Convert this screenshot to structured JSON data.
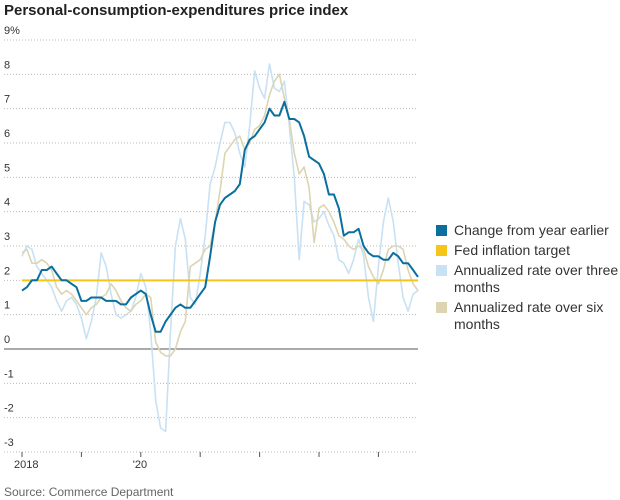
{
  "chart_data": {
    "type": "line",
    "title": "Personal-consumption-expenditures price index",
    "source": "Source: Commerce Department",
    "categories": [
      "2018",
      null,
      null,
      null,
      null,
      null,
      null,
      null,
      null,
      null,
      null,
      null,
      null,
      null,
      null,
      null,
      null,
      null,
      null,
      null,
      null,
      null,
      null,
      null,
      "'20",
      null,
      null,
      null,
      null,
      null,
      null,
      null,
      null,
      null,
      null,
      null,
      null,
      null,
      null,
      null,
      null,
      null,
      null,
      null,
      null,
      null,
      null,
      null,
      null,
      null,
      null,
      null,
      null,
      null,
      null,
      null,
      null,
      null,
      null,
      null,
      null,
      null,
      null,
      null,
      null,
      null,
      null,
      null,
      null,
      null,
      null,
      null,
      null,
      null,
      null,
      null,
      null,
      null,
      null,
      null,
      null
    ],
    "series": [
      {
        "name": "Annualized rate over three months",
        "color": "#c8e1f3",
        "values": [
          2.7,
          3.0,
          2.9,
          2.4,
          2.2,
          2.0,
          1.8,
          1.4,
          1.1,
          1.4,
          1.5,
          1.3,
          0.9,
          0.3,
          0.8,
          1.5,
          2.8,
          2.4,
          1.6,
          1.0,
          0.9,
          1.0,
          1.1,
          1.5,
          2.2,
          1.8,
          0.5,
          -1.5,
          -2.3,
          -2.4,
          0.5,
          3.0,
          3.8,
          3.2,
          1.5,
          1.3,
          2.2,
          3.3,
          4.8,
          5.3,
          6.0,
          6.6,
          6.6,
          6.3,
          5.7,
          5.3,
          6.5,
          8.1,
          7.6,
          7.3,
          8.3,
          7.6,
          7.5,
          7.8,
          6.5,
          5.0,
          2.6,
          4.3,
          4.2,
          3.7,
          3.8,
          4.0,
          3.6,
          3.3,
          2.6,
          2.5,
          2.2,
          2.6,
          3.2,
          2.7,
          1.5,
          0.8,
          2.4,
          3.7,
          4.4,
          3.7,
          2.5,
          1.5,
          1.1,
          1.6,
          1.7
        ]
      },
      {
        "name": "Annualized rate over six months",
        "color": "#ddd4b2",
        "values": [
          2.8,
          2.9,
          2.5,
          2.5,
          2.6,
          2.5,
          2.3,
          1.8,
          1.6,
          1.7,
          1.6,
          1.4,
          1.2,
          1.0,
          1.2,
          1.3,
          1.5,
          1.6,
          1.9,
          1.7,
          1.4,
          1.2,
          1.1,
          1.3,
          1.4,
          1.6,
          1.5,
          0.2,
          -0.1,
          -0.2,
          -0.2,
          0.0,
          0.5,
          0.8,
          2.4,
          2.5,
          2.6,
          2.9,
          3.0,
          3.7,
          4.6,
          5.7,
          5.9,
          6.1,
          6.2,
          5.8,
          6.0,
          6.4,
          6.5,
          6.8,
          7.4,
          7.8,
          8.0,
          7.3,
          6.7,
          5.7,
          5.1,
          5.3,
          4.7,
          3.1,
          4.1,
          4.2,
          4.0,
          3.7,
          3.3,
          3.2,
          3.0,
          2.9,
          3.0,
          2.9,
          2.4,
          2.1,
          1.9,
          2.3,
          2.9,
          3.0,
          3.0,
          2.9,
          2.3,
          1.9,
          1.7
        ]
      },
      {
        "name": "Change from year earlier",
        "color": "#0a6e9e",
        "values": [
          1.7,
          1.8,
          2.0,
          2.0,
          2.3,
          2.3,
          2.4,
          2.2,
          2.0,
          2.0,
          1.9,
          1.8,
          1.4,
          1.4,
          1.5,
          1.5,
          1.5,
          1.4,
          1.4,
          1.4,
          1.3,
          1.3,
          1.5,
          1.6,
          1.7,
          1.6,
          1.0,
          0.5,
          0.5,
          0.8,
          1.0,
          1.2,
          1.3,
          1.2,
          1.2,
          1.4,
          1.6,
          1.8,
          2.7,
          3.7,
          4.2,
          4.4,
          4.5,
          4.6,
          4.8,
          5.8,
          6.1,
          6.2,
          6.4,
          6.6,
          7.0,
          6.8,
          6.8,
          7.2,
          6.7,
          6.7,
          6.6,
          6.2,
          5.6,
          5.5,
          5.4,
          5.1,
          4.5,
          4.5,
          4.1,
          3.3,
          3.4,
          3.4,
          3.5,
          3.0,
          2.8,
          2.7,
          2.7,
          2.6,
          2.6,
          2.8,
          2.7,
          2.5,
          2.5,
          2.3,
          2.1
        ]
      }
    ],
    "reference_line": {
      "name": "Fed inflation target",
      "value": 2,
      "color": "#f5c518"
    },
    "legend_order": [
      2,
      "reference",
      0,
      1
    ],
    "ylim": [
      -3,
      9
    ],
    "yticks": [
      -3,
      -2,
      -1,
      0,
      1,
      2,
      3,
      4,
      5,
      6,
      7,
      8,
      {
        "value": 9,
        "label": "9%"
      }
    ],
    "xtick_every": 12,
    "grid": true
  }
}
